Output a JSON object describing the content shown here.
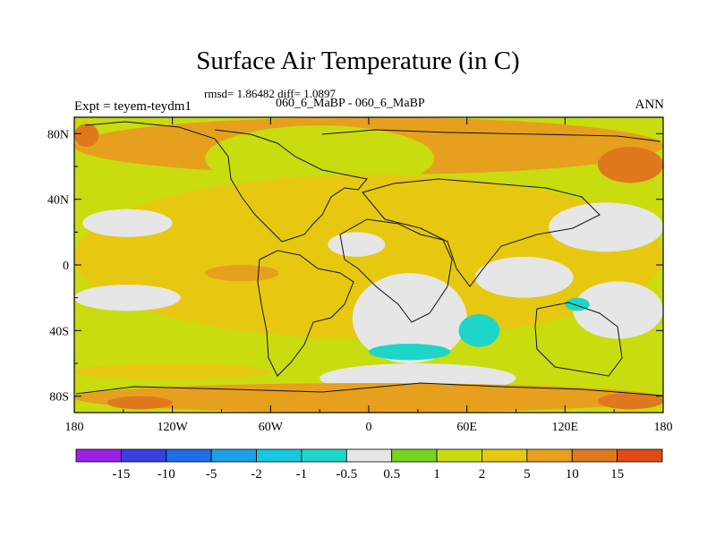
{
  "chart_data": {
    "type": "heatmap",
    "title": "Surface Air Temperature (in C)",
    "stats_text": "rmsd= 1.86482 diff= 1.0897",
    "experiments_text": "060_6_MaBP - 060_6_MaBP",
    "left_label": "Expt = teyem-teydm1",
    "right_label": "ANN",
    "x_ticks": [
      "180",
      "120W",
      "60W",
      "0",
      "60E",
      "120E",
      "180"
    ],
    "x_tick_values": [
      -180,
      -120,
      -60,
      0,
      60,
      120,
      180
    ],
    "y_ticks": [
      "80N",
      "40N",
      "0",
      "40S",
      "80S"
    ],
    "y_tick_values": [
      80,
      40,
      0,
      -40,
      -80
    ],
    "xlim": [
      -180,
      180
    ],
    "ylim": [
      -90,
      90
    ],
    "colorbar": {
      "labels": [
        "-15",
        "-10",
        "-5",
        "-2",
        "-1",
        "-0.5",
        "0.5",
        "1",
        "2",
        "5",
        "10",
        "15"
      ],
      "colors": [
        "#9b20e6",
        "#3a3fe0",
        "#1e6ee6",
        "#1ea0e6",
        "#19c8e0",
        "#1ed6c8",
        "#e6e6e6",
        "#74d41e",
        "#c8dc10",
        "#e6c810",
        "#e6a01e",
        "#e0781e",
        "#e04a14"
      ]
    },
    "regions": [
      {
        "level": "5",
        "lon": [
          -180,
          180
        ],
        "lat": [
          55,
          90
        ]
      },
      {
        "level": "10",
        "lon": [
          -180,
          -165
        ],
        "lat": [
          72,
          86
        ]
      },
      {
        "level": "10",
        "lon": [
          140,
          180
        ],
        "lat": [
          50,
          72
        ]
      },
      {
        "level": "1",
        "lon": [
          -100,
          40
        ],
        "lat": [
          45,
          85
        ]
      },
      {
        "level": "1",
        "lon": [
          -60,
          120
        ],
        "lat": [
          0,
          48
        ]
      },
      {
        "level": "1",
        "lon": [
          -115,
          -45
        ],
        "lat": [
          -35,
          10
        ]
      },
      {
        "level": "1",
        "lon": [
          -180,
          180
        ],
        "lat": [
          -62,
          -50
        ]
      },
      {
        "level": "2",
        "lon": [
          -180,
          180
        ],
        "lat": [
          -45,
          55
        ]
      },
      {
        "level": "-0.5",
        "lon": [
          -175,
          -120
        ],
        "lat": [
          17,
          34
        ]
      },
      {
        "level": "-0.5",
        "lon": [
          -180,
          -115
        ],
        "lat": [
          -28,
          -12
        ]
      },
      {
        "level": "-0.5",
        "lon": [
          -10,
          60
        ],
        "lat": [
          -60,
          -5
        ]
      },
      {
        "level": "-0.5",
        "lon": [
          110,
          180
        ],
        "lat": [
          8,
          38
        ]
      },
      {
        "level": "-0.5",
        "lon": [
          65,
          125
        ],
        "lat": [
          -20,
          5
        ]
      },
      {
        "level": "-0.5",
        "lon": [
          125,
          180
        ],
        "lat": [
          -45,
          -10
        ]
      },
      {
        "level": "-0.5",
        "lon": [
          -25,
          10
        ],
        "lat": [
          5,
          20
        ]
      },
      {
        "level": "-0.5",
        "lon": [
          -30,
          90
        ],
        "lat": [
          -78,
          -60
        ]
      },
      {
        "level": "-1",
        "lon": [
          55,
          80
        ],
        "lat": [
          -50,
          -30
        ]
      },
      {
        "level": "-1",
        "lon": [
          0,
          50
        ],
        "lat": [
          -58,
          -48
        ]
      },
      {
        "level": "-1",
        "lon": [
          120,
          135
        ],
        "lat": [
          -28,
          -20
        ]
      },
      {
        "level": "5",
        "lon": [
          -180,
          180
        ],
        "lat": [
          -90,
          -72
        ]
      },
      {
        "level": "5",
        "lon": [
          -100,
          -55
        ],
        "lat": [
          -10,
          0
        ]
      },
      {
        "level": "10",
        "lon": [
          -160,
          -120
        ],
        "lat": [
          -88,
          -80
        ]
      },
      {
        "level": "10",
        "lon": [
          140,
          180
        ],
        "lat": [
          -88,
          -78
        ]
      },
      {
        "level": "2",
        "lon": [
          -180,
          -60
        ],
        "lat": [
          -70,
          -60
        ]
      }
    ]
  }
}
